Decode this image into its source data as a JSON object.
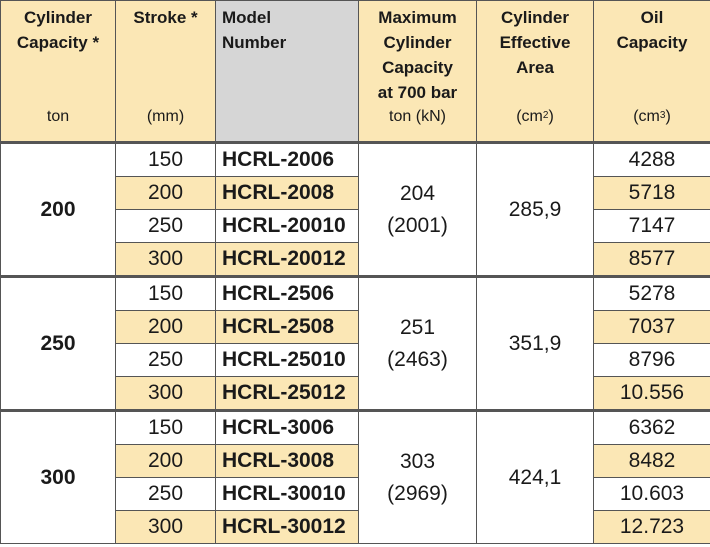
{
  "headers": {
    "capacity": {
      "title_1": "Cylinder",
      "title_2": "Capacity *",
      "unit": "ton"
    },
    "stroke": {
      "title_1": "Stroke *",
      "unit": "(mm)"
    },
    "model": {
      "title_1": "Model",
      "title_2": "Number"
    },
    "max_capacity": {
      "title_1": "Maximum",
      "title_2": "Cylinder",
      "title_3": "Capacity",
      "title_4": "at 700 bar",
      "unit": "ton (kN)"
    },
    "area": {
      "title_1": "Cylinder",
      "title_2": "Effective",
      "title_3": "Area",
      "unit": "(cm",
      "unit_sup": "2",
      "unit_close": ")"
    },
    "oil": {
      "title_1": "Oil",
      "title_2": "Capacity",
      "unit": "(cm",
      "unit_sup": "3",
      "unit_close": ")"
    }
  },
  "groups": [
    {
      "capacity": "200",
      "max_ton": "204",
      "max_kn": "(2001)",
      "area": "285,9",
      "rows": [
        {
          "stroke": "150",
          "model": "HCRL-2006",
          "oil": "4288"
        },
        {
          "stroke": "200",
          "model": "HCRL-2008",
          "oil": "5718"
        },
        {
          "stroke": "250",
          "model": "HCRL-20010",
          "oil": "7147"
        },
        {
          "stroke": "300",
          "model": "HCRL-20012",
          "oil": "8577"
        }
      ]
    },
    {
      "capacity": "250",
      "max_ton": "251",
      "max_kn": "(2463)",
      "area": "351,9",
      "rows": [
        {
          "stroke": "150",
          "model": "HCRL-2506",
          "oil": "5278"
        },
        {
          "stroke": "200",
          "model": "HCRL-2508",
          "oil": "7037"
        },
        {
          "stroke": "250",
          "model": "HCRL-25010",
          "oil": "8796"
        },
        {
          "stroke": "300",
          "model": "HCRL-25012",
          "oil": "10.556"
        }
      ]
    },
    {
      "capacity": "300",
      "max_ton": "303",
      "max_kn": "(2969)",
      "area": "424,1",
      "rows": [
        {
          "stroke": "150",
          "model": "HCRL-3006",
          "oil": "6362"
        },
        {
          "stroke": "200",
          "model": "HCRL-3008",
          "oil": "8482"
        },
        {
          "stroke": "250",
          "model": "HCRL-30010",
          "oil": "10.603"
        },
        {
          "stroke": "300",
          "model": "HCRL-30012",
          "oil": "12.723"
        }
      ]
    }
  ],
  "colors": {
    "header_bg": "#fbe7b5",
    "model_header_bg": "#d6d6d6",
    "stripe_bg": "#fbe7b5",
    "border": "#555555"
  }
}
